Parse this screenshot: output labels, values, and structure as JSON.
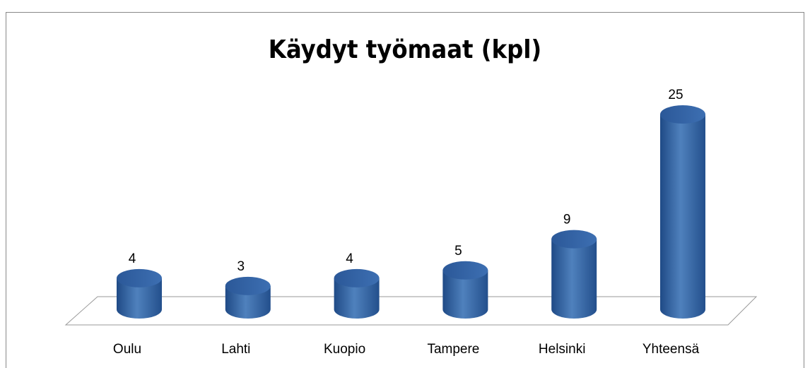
{
  "chart_data": {
    "type": "bar",
    "title": "Käydyt työmaat (kpl)",
    "categories": [
      "Oulu",
      "Lahti",
      "Kuopio",
      "Tampere",
      "Helsinki",
      "Yhteensä"
    ],
    "values": [
      4,
      3,
      4,
      5,
      9,
      25
    ],
    "color": "#4f81bd"
  }
}
